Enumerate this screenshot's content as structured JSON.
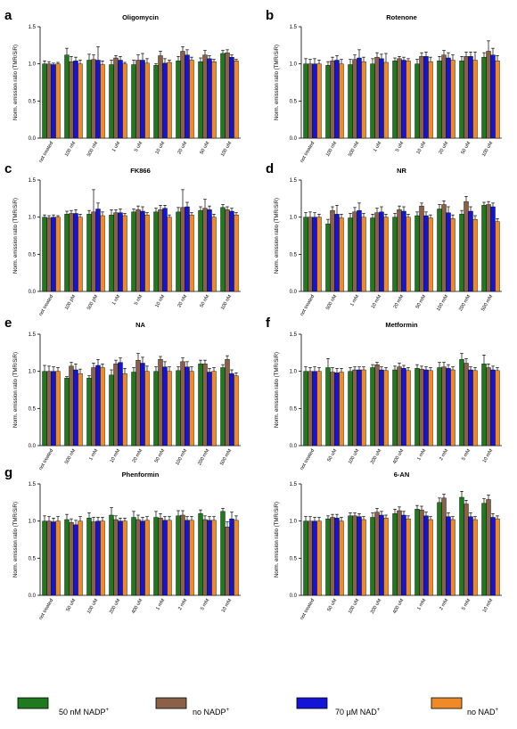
{
  "colors": {
    "nadp50": "#1f7a1f",
    "no_nadp": "#8a6048",
    "nad70": "#1414d8",
    "no_nad": "#f08a28"
  },
  "legend": [
    {
      "key": "nadp50",
      "text": "50 nM NADP",
      "sup": "+"
    },
    {
      "key": "no_nadp",
      "text": "no NADP",
      "sup": "+"
    },
    {
      "key": "nad70",
      "text": "70 µM NAD",
      "sup": "+"
    },
    {
      "key": "no_nad",
      "text": "no NAD",
      "sup": "+"
    }
  ],
  "chart_data": [
    {
      "letter": "a",
      "title": "Oligomycin",
      "type": "bar",
      "ylabel": "Norm. emission ratio (TMR/SiR)",
      "ylim": [
        0,
        1.5
      ],
      "yticks": [
        "0.0",
        "0.5",
        "1.0",
        "1.5"
      ],
      "categories": [
        "not treated",
        "100 nM",
        "500 nM",
        "1 uM",
        "5 uM",
        "10 uM",
        "20 uM",
        "50 uM",
        "100 uM"
      ],
      "series": [
        {
          "key": "nadp50",
          "name": "50 nM NADP+",
          "values": [
            1.0,
            1.12,
            1.05,
            0.99,
            0.99,
            0.98,
            1.04,
            1.03,
            1.14
          ],
          "errors": [
            0.04,
            0.09,
            0.08,
            0.06,
            0.06,
            0.02,
            0.06,
            0.05,
            0.04
          ]
        },
        {
          "key": "no_nadp",
          "name": "no NADP+",
          "values": [
            1.0,
            1.03,
            1.06,
            1.08,
            1.05,
            1.11,
            1.17,
            1.12,
            1.15
          ],
          "errors": [
            0.03,
            0.07,
            0.06,
            0.03,
            0.07,
            0.06,
            0.06,
            0.06,
            0.04
          ]
        },
        {
          "key": "nad70",
          "name": "70 µM NAD+",
          "values": [
            0.99,
            1.04,
            1.05,
            1.05,
            1.05,
            1.01,
            1.12,
            1.07,
            1.09
          ],
          "errors": [
            0.02,
            0.05,
            0.18,
            0.05,
            0.09,
            0.06,
            0.07,
            0.04,
            0.03
          ]
        },
        {
          "key": "no_nad",
          "name": "no NAD+",
          "values": [
            1.0,
            1.0,
            0.99,
            1.0,
            1.01,
            1.02,
            1.05,
            1.03,
            1.04
          ],
          "errors": [
            0.02,
            0.05,
            0.05,
            0.02,
            0.06,
            0.03,
            0.04,
            0.03,
            0.02
          ]
        }
      ]
    },
    {
      "letter": "b",
      "title": "Rotenone",
      "type": "bar",
      "ylabel": "Norm. emission ratio (TMR/SiR)",
      "ylim": [
        0,
        1.5
      ],
      "yticks": [
        "0.0",
        "0.5",
        "1.0",
        "1.5"
      ],
      "categories": [
        "not treated",
        "100 nM",
        "500 nM",
        "1 uM",
        "5 uM",
        "10 uM",
        "20 uM",
        "50 uM",
        "100 uM"
      ],
      "series": [
        {
          "key": "nadp50",
          "name": "50 nM NADP+",
          "values": [
            1.0,
            0.98,
            0.99,
            1.0,
            1.04,
            1.0,
            1.04,
            1.04,
            1.09
          ],
          "errors": [
            0.07,
            0.05,
            0.07,
            0.07,
            0.04,
            0.06,
            0.06,
            0.06,
            0.06
          ]
        },
        {
          "key": "no_nadp",
          "name": "no NADP+",
          "values": [
            1.0,
            1.04,
            1.06,
            1.09,
            1.07,
            1.1,
            1.12,
            1.1,
            1.17
          ],
          "errors": [
            0.06,
            0.05,
            0.06,
            0.06,
            0.03,
            0.05,
            0.06,
            0.06,
            0.14
          ]
        },
        {
          "key": "nad70",
          "name": "70 µM NAD+",
          "values": [
            1.0,
            1.05,
            1.08,
            1.07,
            1.05,
            1.1,
            1.08,
            1.1,
            1.12
          ],
          "errors": [
            0.07,
            0.06,
            0.11,
            0.06,
            0.04,
            0.06,
            0.07,
            0.06,
            0.09
          ]
        },
        {
          "key": "no_nad",
          "name": "no NAD+",
          "values": [
            1.0,
            1.0,
            1.03,
            1.02,
            1.04,
            1.03,
            1.05,
            1.05,
            1.04
          ],
          "errors": [
            0.05,
            0.06,
            0.06,
            0.12,
            0.03,
            0.06,
            0.07,
            0.11,
            0.07
          ]
        }
      ]
    },
    {
      "letter": "c",
      "title": "FK866",
      "type": "bar",
      "ylabel": "Norm. emission ratio (TMR/SiR)",
      "ylim": [
        0,
        1.5
      ],
      "yticks": [
        "0.0",
        "0.5",
        "1.0",
        "1.5"
      ],
      "categories": [
        "not treated",
        "100 pM",
        "500 pM",
        "1 nM",
        "5 nM",
        "10 nM",
        "20 nM",
        "50 nM",
        "100 nM"
      ],
      "series": [
        {
          "key": "nadp50",
          "name": "50 nM NADP+",
          "values": [
            1.0,
            1.04,
            1.04,
            1.03,
            1.07,
            1.07,
            1.07,
            1.09,
            1.13
          ],
          "errors": [
            0.03,
            0.04,
            0.05,
            0.07,
            0.04,
            0.05,
            0.06,
            0.05,
            0.04
          ]
        },
        {
          "key": "no_nadp",
          "name": "no NADP+",
          "values": [
            0.99,
            1.05,
            1.07,
            1.06,
            1.1,
            1.1,
            1.13,
            1.12,
            1.1
          ],
          "errors": [
            0.03,
            0.04,
            0.3,
            0.04,
            0.05,
            0.06,
            0.24,
            0.12,
            0.04
          ]
        },
        {
          "key": "nad70",
          "name": "70 µM NAD+",
          "values": [
            1.0,
            1.05,
            1.11,
            1.06,
            1.08,
            1.12,
            1.14,
            1.1,
            1.08
          ],
          "errors": [
            0.03,
            0.05,
            0.08,
            0.05,
            0.06,
            0.04,
            0.06,
            0.05,
            0.04
          ]
        },
        {
          "key": "no_nad",
          "name": "no NAD+",
          "values": [
            1.0,
            1.0,
            1.02,
            1.02,
            1.03,
            1.0,
            1.03,
            1.0,
            1.03
          ],
          "errors": [
            0.02,
            0.04,
            0.05,
            0.03,
            0.03,
            0.03,
            0.03,
            0.04,
            0.03
          ]
        }
      ]
    },
    {
      "letter": "d",
      "title": "NR",
      "type": "bar",
      "ylabel": "Norm. emission ratio (TMR/SiR)",
      "ylim": [
        0,
        1.5
      ],
      "yticks": [
        "0.0",
        "0.5",
        "1.0",
        "1.5"
      ],
      "categories": [
        "not treated",
        "500 nM",
        "1 mM",
        "10 mM",
        "20 mM",
        "50 mM",
        "100 mM",
        "200 mM",
        "500 mM"
      ],
      "series": [
        {
          "key": "nadp50",
          "name": "50 nM NADP+",
          "values": [
            1.0,
            0.91,
            0.99,
            0.99,
            1.0,
            1.02,
            1.11,
            1.04,
            1.16
          ],
          "errors": [
            0.06,
            0.06,
            0.06,
            0.05,
            0.05,
            0.05,
            0.06,
            0.05,
            0.04
          ]
        },
        {
          "key": "no_nadp",
          "name": "no NADP+",
          "values": [
            1.0,
            1.09,
            1.07,
            1.06,
            1.1,
            1.15,
            1.17,
            1.21,
            1.17
          ],
          "errors": [
            0.07,
            0.05,
            0.06,
            0.06,
            0.05,
            0.04,
            0.05,
            0.07,
            0.04
          ]
        },
        {
          "key": "nad70",
          "name": "70 µM NAD+",
          "values": [
            1.0,
            1.04,
            1.09,
            1.07,
            1.08,
            1.02,
            1.06,
            1.08,
            1.14
          ],
          "errors": [
            0.06,
            0.12,
            0.1,
            0.07,
            0.06,
            0.05,
            0.08,
            0.06,
            0.05
          ]
        },
        {
          "key": "no_nad",
          "name": "no NAD+",
          "values": [
            1.0,
            0.99,
            1.0,
            1.0,
            1.0,
            0.99,
            0.98,
            0.97,
            0.94
          ],
          "errors": [
            0.04,
            0.05,
            0.05,
            0.04,
            0.04,
            0.04,
            0.05,
            0.05,
            0.04
          ]
        }
      ]
    },
    {
      "letter": "e",
      "title": "NA",
      "type": "bar",
      "ylabel": "Norm. emission ratio (TMR/SiR)",
      "ylim": [
        0,
        1.5
      ],
      "yticks": [
        "0.0",
        "0.5",
        "1.0",
        "1.5"
      ],
      "categories": [
        "not treated",
        "500 nM",
        "1 mM",
        "10 mM",
        "20 mM",
        "50 mM",
        "100 mM",
        "200 mM",
        "500 mM"
      ],
      "series": [
        {
          "key": "nadp50",
          "name": "50 nM NADP+",
          "values": [
            1.0,
            0.91,
            0.91,
            0.95,
            0.99,
            1.0,
            1.01,
            1.1,
            1.05
          ],
          "errors": [
            0.08,
            0.02,
            0.03,
            0.07,
            0.06,
            0.06,
            0.05,
            0.05,
            0.04
          ]
        },
        {
          "key": "no_nadp",
          "name": "no NADP+",
          "values": [
            1.0,
            1.07,
            1.05,
            1.1,
            1.15,
            1.16,
            1.13,
            1.1,
            1.16
          ],
          "errors": [
            0.07,
            0.05,
            0.06,
            0.05,
            0.09,
            0.04,
            0.05,
            0.05,
            0.05
          ]
        },
        {
          "key": "nad70",
          "name": "70 µM NAD+",
          "values": [
            1.0,
            1.02,
            1.08,
            1.12,
            1.11,
            1.06,
            1.06,
            0.99,
            0.97
          ],
          "errors": [
            0.06,
            0.08,
            0.08,
            0.06,
            0.08,
            0.07,
            0.07,
            0.05,
            0.05
          ]
        },
        {
          "key": "no_nad",
          "name": "no NAD+",
          "values": [
            1.0,
            0.97,
            1.05,
            0.97,
            1.0,
            1.0,
            1.0,
            1.0,
            0.94
          ],
          "errors": [
            0.05,
            0.06,
            0.05,
            0.07,
            0.07,
            0.06,
            0.06,
            0.05,
            0.04
          ]
        }
      ]
    },
    {
      "letter": "f",
      "title": "Metformin",
      "type": "bar",
      "ylabel": "Norm. emission ratio (TMR/SiR)",
      "ylim": [
        0,
        1.5
      ],
      "yticks": [
        "0.0",
        "0.5",
        "1.0",
        "1.5"
      ],
      "categories": [
        "not treated",
        "50 uM",
        "100 uM",
        "200 uM",
        "400 uM",
        "1 mM",
        "2 mM",
        "5 mM",
        "10 mM"
      ],
      "series": [
        {
          "key": "nadp50",
          "name": "50 nM NADP+",
          "values": [
            1.0,
            1.05,
            1.0,
            1.05,
            1.02,
            1.04,
            1.05,
            1.16,
            1.1
          ],
          "errors": [
            0.06,
            0.12,
            0.05,
            0.04,
            0.05,
            0.05,
            0.07,
            0.08,
            0.12
          ]
        },
        {
          "key": "no_nadp",
          "name": "no NADP+",
          "values": [
            1.0,
            0.99,
            1.02,
            1.09,
            1.06,
            1.03,
            1.06,
            1.11,
            1.05
          ],
          "errors": [
            0.05,
            0.06,
            0.04,
            0.03,
            0.05,
            0.04,
            0.06,
            0.06,
            0.05
          ]
        },
        {
          "key": "nad70",
          "name": "70 µM NAD+",
          "values": [
            1.0,
            0.98,
            1.02,
            1.02,
            1.04,
            1.02,
            1.04,
            1.02,
            1.02
          ],
          "errors": [
            0.06,
            0.06,
            0.04,
            0.04,
            0.04,
            0.04,
            0.05,
            0.04,
            0.05
          ]
        },
        {
          "key": "no_nad",
          "name": "no NAD+",
          "values": [
            1.0,
            0.99,
            1.02,
            1.01,
            1.01,
            1.01,
            1.02,
            1.01,
            1.01
          ],
          "errors": [
            0.05,
            0.05,
            0.04,
            0.04,
            0.04,
            0.04,
            0.04,
            0.04,
            0.04
          ]
        }
      ]
    },
    {
      "letter": "g",
      "title": "Phenformin",
      "type": "bar",
      "ylabel": "Norm. emission ratio (TMR/SiR)",
      "ylim": [
        0,
        1.5
      ],
      "yticks": [
        "0.0",
        "0.5",
        "1.0",
        "1.5"
      ],
      "categories": [
        "not treated",
        "50 uM",
        "100 uM",
        "200 uM",
        "400 uM",
        "1 mM",
        "2 mM",
        "5 mM",
        "10 mM"
      ],
      "series": [
        {
          "key": "nadp50",
          "name": "50 nM NADP+",
          "values": [
            1.0,
            1.02,
            1.04,
            1.08,
            1.05,
            1.05,
            1.07,
            1.1,
            1.13
          ],
          "errors": [
            0.07,
            0.07,
            0.07,
            0.1,
            0.08,
            0.08,
            0.07,
            0.05,
            0.04
          ]
        },
        {
          "key": "no_nadp",
          "name": "no NADP+",
          "values": [
            1.0,
            0.98,
            0.99,
            1.02,
            1.02,
            1.04,
            1.08,
            1.02,
            0.92
          ],
          "errors": [
            0.06,
            0.05,
            0.06,
            0.05,
            0.06,
            0.06,
            0.06,
            0.05,
            0.07
          ]
        },
        {
          "key": "nad70",
          "name": "70 µM NAD+",
          "values": [
            0.99,
            0.95,
            1.0,
            1.0,
            1.0,
            1.01,
            1.01,
            1.01,
            1.03
          ],
          "errors": [
            0.05,
            0.06,
            0.05,
            0.04,
            0.05,
            0.05,
            0.05,
            0.05,
            0.09
          ]
        },
        {
          "key": "no_nad",
          "name": "no NAD+",
          "values": [
            1.0,
            1.0,
            1.0,
            1.0,
            1.01,
            1.01,
            1.01,
            1.01,
            1.01
          ],
          "errors": [
            0.06,
            0.06,
            0.05,
            0.04,
            0.05,
            0.05,
            0.05,
            0.05,
            0.06
          ]
        }
      ]
    },
    {
      "letter": "",
      "title": "6-AN",
      "type": "bar",
      "ylabel": "Norm. emission ratio (TMR/SiR)",
      "ylim": [
        0,
        1.5
      ],
      "yticks": [
        "0.0",
        "0.5",
        "1.0",
        "1.5"
      ],
      "categories": [
        "not treated",
        "50 uM",
        "100 uM",
        "200 uM",
        "400 uM",
        "1 mM",
        "2 mM",
        "5 mM",
        "10 mM"
      ],
      "series": [
        {
          "key": "nadp50",
          "name": "50 nM NADP+",
          "values": [
            1.0,
            1.03,
            1.07,
            1.05,
            1.1,
            1.16,
            1.25,
            1.32,
            1.24
          ],
          "errors": [
            0.06,
            0.04,
            0.04,
            0.06,
            0.06,
            0.05,
            0.06,
            0.08,
            0.06
          ]
        },
        {
          "key": "no_nadp",
          "name": "no NADP+",
          "values": [
            1.0,
            1.05,
            1.07,
            1.12,
            1.14,
            1.15,
            1.31,
            1.23,
            1.29
          ],
          "errors": [
            0.06,
            0.04,
            0.04,
            0.05,
            0.05,
            0.05,
            0.05,
            0.05,
            0.06
          ]
        },
        {
          "key": "nad70",
          "name": "70 µM NAD+",
          "values": [
            1.0,
            1.04,
            1.06,
            1.08,
            1.08,
            1.07,
            1.06,
            1.06,
            1.05
          ],
          "errors": [
            0.05,
            0.05,
            0.04,
            0.05,
            0.05,
            0.05,
            0.05,
            0.05,
            0.05
          ]
        },
        {
          "key": "no_nad",
          "name": "no NAD+",
          "values": [
            1.0,
            1.0,
            1.02,
            1.04,
            1.03,
            1.02,
            1.02,
            1.02,
            1.03
          ],
          "errors": [
            0.05,
            0.05,
            0.04,
            0.04,
            0.04,
            0.04,
            0.04,
            0.04,
            0.04
          ]
        }
      ]
    }
  ]
}
